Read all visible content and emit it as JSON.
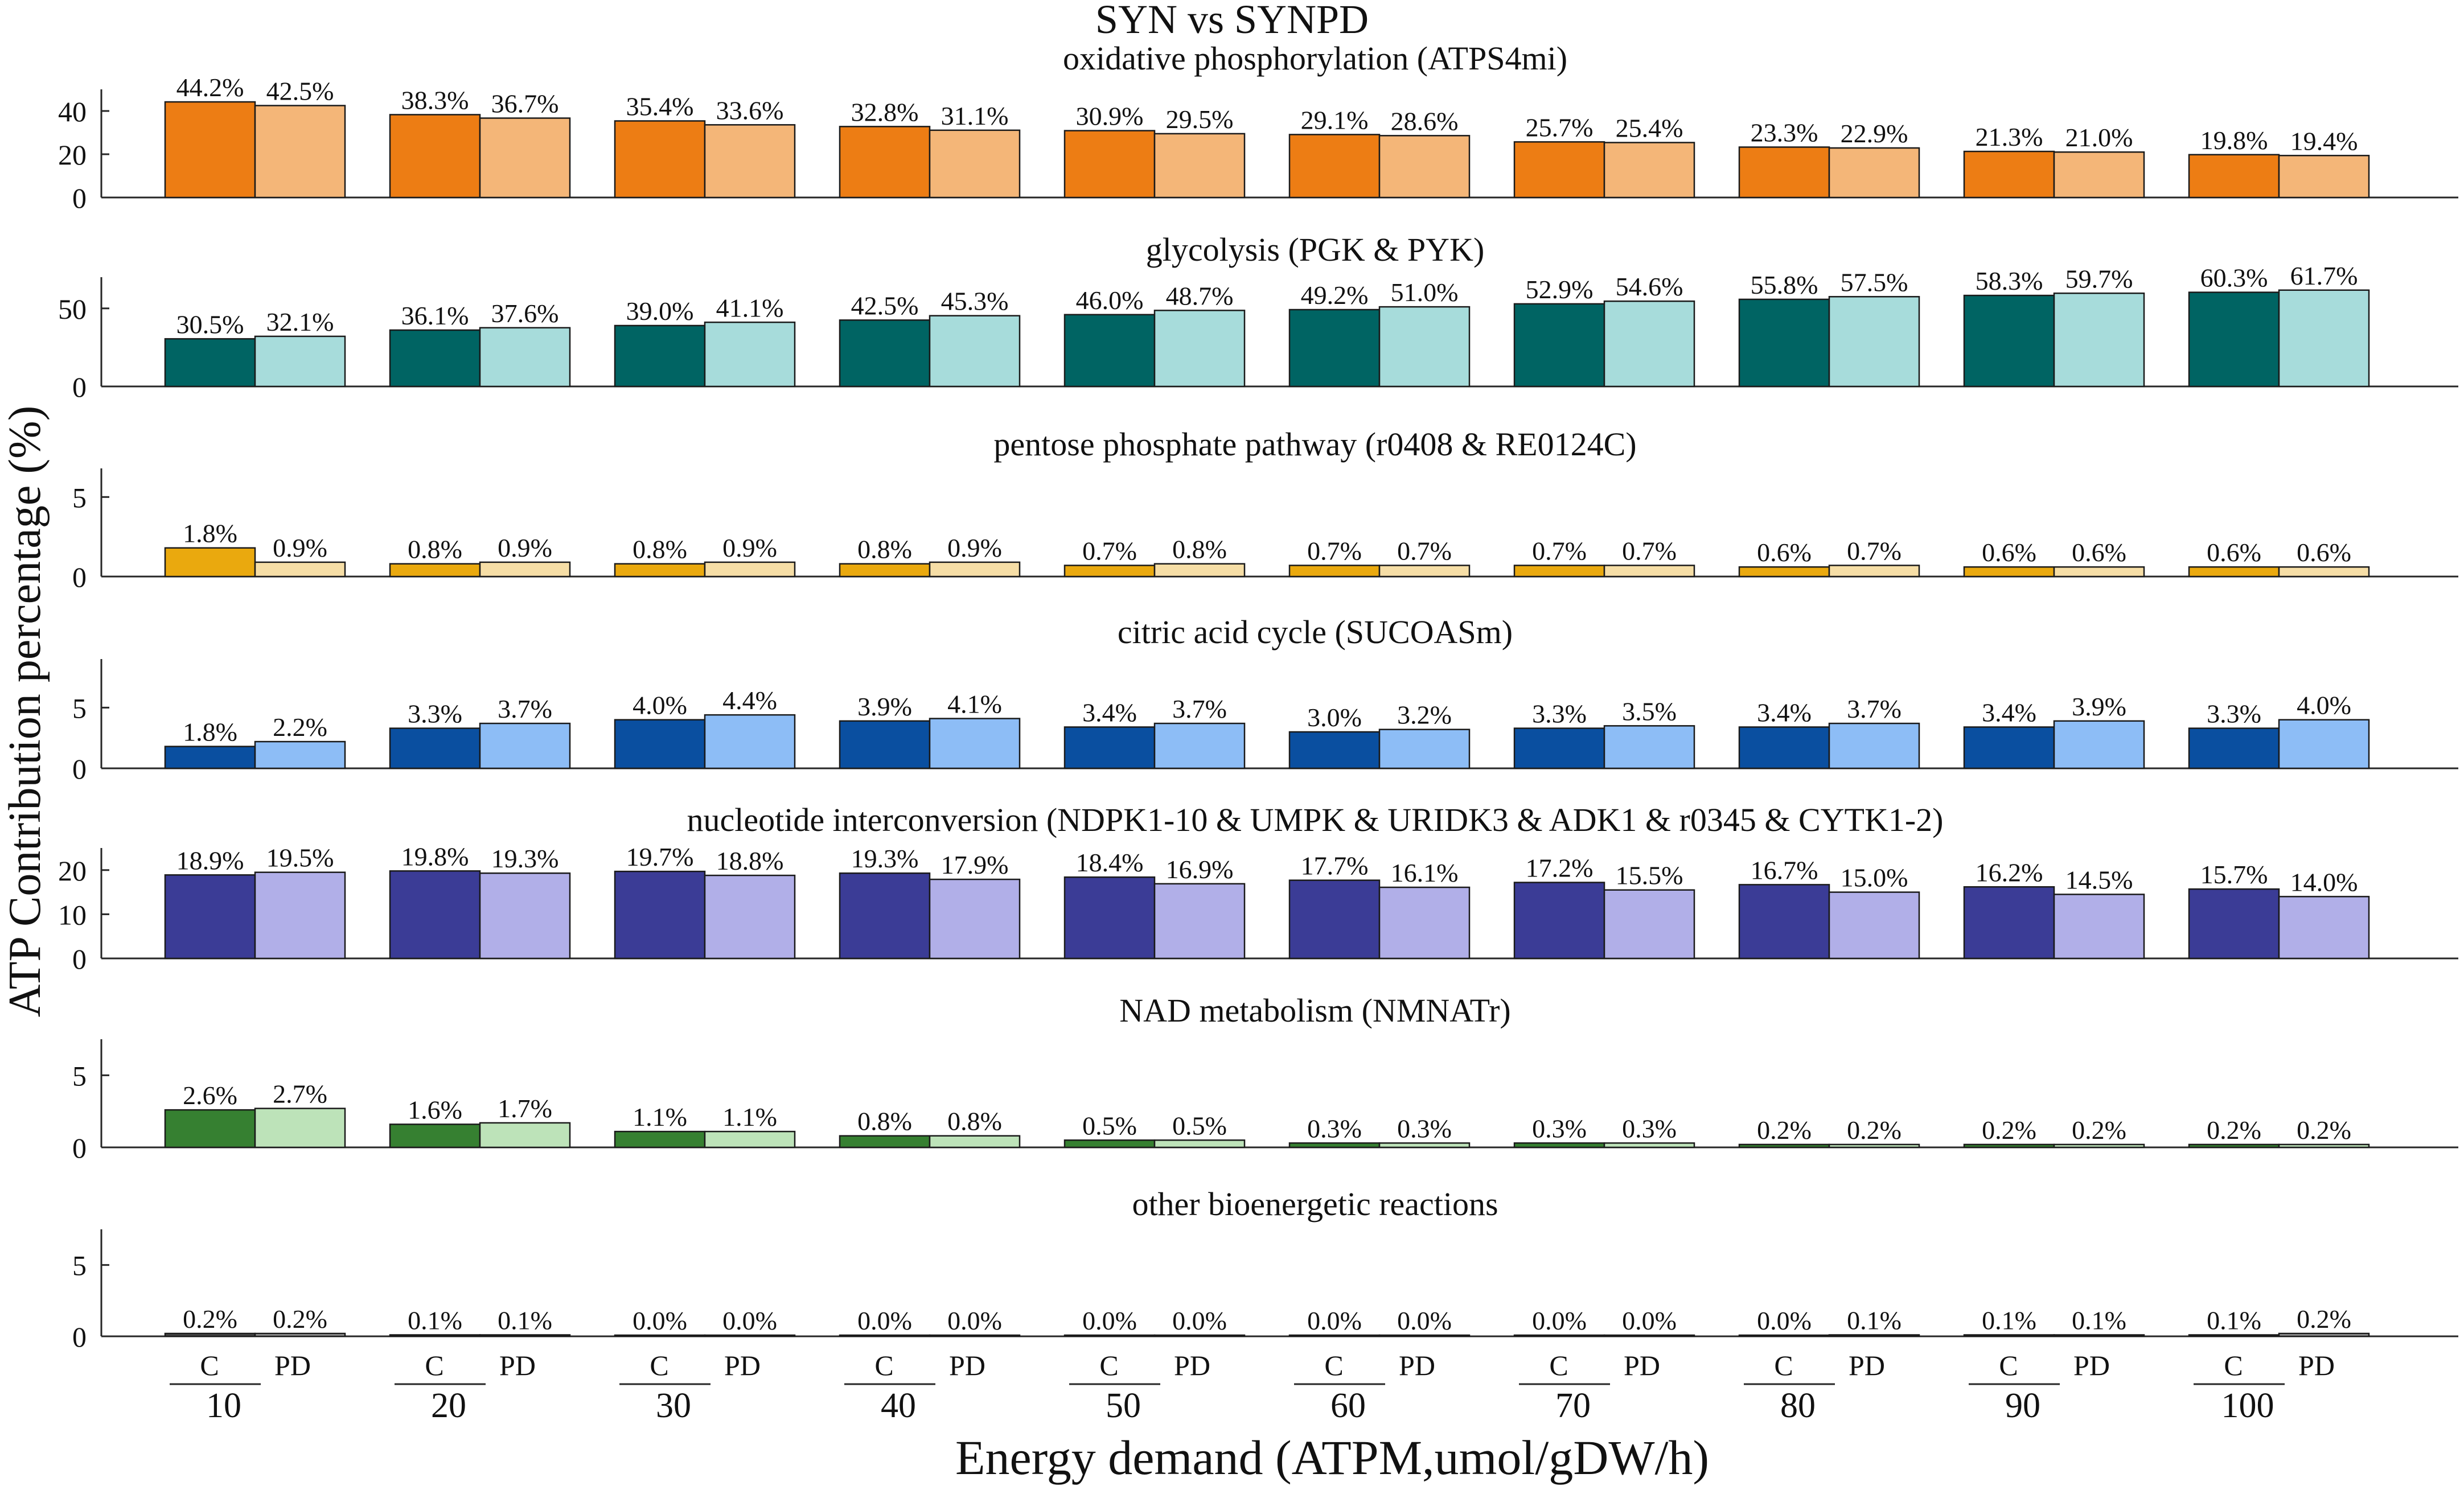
{
  "chart_data": {
    "type": "bar",
    "title": "SYN vs SYNPD",
    "ylabel": "ATP Contribution percentage (%)",
    "xlabel": "Energy demand (ATPM,umol/gDW/h)",
    "categories": [
      "10",
      "20",
      "30",
      "40",
      "50",
      "60",
      "70",
      "80",
      "90",
      "100"
    ],
    "group_labels": [
      "C",
      "PD"
    ],
    "panels": [
      {
        "title": "oxidative phosphorylation (ATPS4mi)",
        "ylim": [
          0,
          50
        ],
        "yticks": [
          0,
          20,
          40
        ],
        "colors": [
          "#ED7D14",
          "#F4B678"
        ],
        "series": [
          {
            "name": "C",
            "values": [
              44.2,
              38.3,
              35.4,
              32.8,
              30.9,
              29.1,
              25.7,
              23.3,
              21.3,
              19.8
            ],
            "labels": [
              "44.2%",
              "38.3%",
              "35.4%",
              "32.8%",
              "30.9%",
              "29.1%",
              "25.7%",
              "23.3%",
              "21.3%",
              "19.8%"
            ]
          },
          {
            "name": "PD",
            "values": [
              42.5,
              36.7,
              33.6,
              31.1,
              29.5,
              28.6,
              25.4,
              22.9,
              21.0,
              19.4
            ],
            "labels": [
              "42.5%",
              "36.7%",
              "33.6%",
              "31.1%",
              "29.5%",
              "28.6%",
              "25.4%",
              "22.9%",
              "21.0%",
              "19.4%"
            ]
          }
        ]
      },
      {
        "title": "glycolysis (PGK & PYK)",
        "ylim": [
          0,
          70
        ],
        "yticks": [
          0,
          50
        ],
        "colors": [
          "#006463",
          "#A7DCDB"
        ],
        "series": [
          {
            "name": "C",
            "values": [
              30.5,
              36.1,
              39.0,
              42.5,
              46.0,
              49.2,
              52.9,
              55.8,
              58.3,
              60.3
            ],
            "labels": [
              "30.5%",
              "36.1%",
              "39.0%",
              "42.5%",
              "46.0%",
              "49.2%",
              "52.9%",
              "55.8%",
              "58.3%",
              "60.3%"
            ]
          },
          {
            "name": "PD",
            "values": [
              32.1,
              37.6,
              41.1,
              45.3,
              48.7,
              51.0,
              54.6,
              57.5,
              59.7,
              61.7
            ],
            "labels": [
              "32.1%",
              "37.6%",
              "41.1%",
              "45.3%",
              "48.7%",
              "51.0%",
              "54.6%",
              "57.5%",
              "59.7%",
              "61.7%"
            ]
          }
        ]
      },
      {
        "title": "pentose phosphate pathway (r0408 & RE0124C)",
        "ylim": [
          0,
          6.8
        ],
        "yticks": [
          0,
          5
        ],
        "colors": [
          "#EAA90E",
          "#F6DEA6"
        ],
        "series": [
          {
            "name": "C",
            "values": [
              1.8,
              0.8,
              0.8,
              0.8,
              0.7,
              0.7,
              0.7,
              0.6,
              0.6,
              0.6
            ],
            "labels": [
              "1.8%",
              "0.8%",
              "0.8%",
              "0.8%",
              "0.7%",
              "0.7%",
              "0.7%",
              "0.6%",
              "0.6%",
              "0.6%"
            ]
          },
          {
            "name": "PD",
            "values": [
              0.9,
              0.9,
              0.9,
              0.9,
              0.8,
              0.7,
              0.7,
              0.7,
              0.6,
              0.6
            ],
            "labels": [
              "0.9%",
              "0.9%",
              "0.9%",
              "0.9%",
              "0.8%",
              "0.7%",
              "0.7%",
              "0.7%",
              "0.6%",
              "0.6%"
            ]
          }
        ]
      },
      {
        "title": "citric acid cycle (SUCOASm)",
        "ylim": [
          0,
          9
        ],
        "yticks": [
          0,
          5
        ],
        "colors": [
          "#0A4FA0",
          "#8DBDF6"
        ],
        "series": [
          {
            "name": "C",
            "values": [
              1.8,
              3.3,
              4.0,
              3.9,
              3.4,
              3.0,
              3.3,
              3.4,
              3.4,
              3.3
            ],
            "labels": [
              "1.8%",
              "3.3%",
              "4.0%",
              "3.9%",
              "3.4%",
              "3.0%",
              "3.3%",
              "3.4%",
              "3.4%",
              "3.3%"
            ]
          },
          {
            "name": "PD",
            "values": [
              2.2,
              3.7,
              4.4,
              4.1,
              3.7,
              3.2,
              3.5,
              3.7,
              3.9,
              4.0
            ],
            "labels": [
              "2.2%",
              "3.7%",
              "4.4%",
              "4.1%",
              "3.7%",
              "3.2%",
              "3.5%",
              "3.7%",
              "3.9%",
              "4.0%"
            ]
          }
        ]
      },
      {
        "title": "nucleotide interconversion (NDPK1-10 & UMPK & URIDK3 & ADK1 & r0345 & CYTK1-2)",
        "ylim": [
          0,
          25
        ],
        "yticks": [
          0,
          10,
          20
        ],
        "colors": [
          "#3B3C96",
          "#B1AFE8"
        ],
        "series": [
          {
            "name": "C",
            "values": [
              18.9,
              19.8,
              19.7,
              19.3,
              18.4,
              17.7,
              17.2,
              16.7,
              16.2,
              15.7
            ],
            "labels": [
              "18.9%",
              "19.8%",
              "19.7%",
              "19.3%",
              "18.4%",
              "17.7%",
              "17.2%",
              "16.7%",
              "16.2%",
              "15.7%"
            ]
          },
          {
            "name": "PD",
            "values": [
              19.5,
              19.3,
              18.8,
              17.9,
              16.9,
              16.1,
              15.5,
              15.0,
              14.5,
              14.0
            ],
            "labels": [
              "19.5%",
              "19.3%",
              "18.8%",
              "17.9%",
              "16.9%",
              "16.1%",
              "15.5%",
              "15.0%",
              "14.5%",
              "14.0%"
            ]
          }
        ]
      },
      {
        "title": "NAD metabolism (NMNATr)",
        "ylim": [
          0,
          7.5
        ],
        "yticks": [
          0,
          5
        ],
        "colors": [
          "#368031",
          "#BDE3B9"
        ],
        "series": [
          {
            "name": "C",
            "values": [
              2.6,
              1.6,
              1.1,
              0.8,
              0.5,
              0.3,
              0.3,
              0.2,
              0.2,
              0.2
            ],
            "labels": [
              "2.6%",
              "1.6%",
              "1.1%",
              "0.8%",
              "0.5%",
              "0.3%",
              "0.3%",
              "0.2%",
              "0.2%",
              "0.2%"
            ]
          },
          {
            "name": "PD",
            "values": [
              2.7,
              1.7,
              1.1,
              0.8,
              0.5,
              0.3,
              0.3,
              0.2,
              0.2,
              0.2
            ],
            "labels": [
              "2.7%",
              "1.7%",
              "1.1%",
              "0.8%",
              "0.5%",
              "0.3%",
              "0.3%",
              "0.2%",
              "0.2%",
              "0.2%"
            ]
          }
        ]
      },
      {
        "title": "other bioenergetic reactions",
        "ylim": [
          0,
          7.5
        ],
        "yticks": [
          0,
          5
        ],
        "colors": [
          "#4A4A4A",
          "#9A9A9A"
        ],
        "series": [
          {
            "name": "C",
            "values": [
              0.2,
              0.1,
              0.0,
              0.0,
              0.0,
              0.0,
              0.0,
              0.0,
              0.1,
              0.1
            ],
            "labels": [
              "0.2%",
              "0.1%",
              "0.0%",
              "0.0%",
              "0.0%",
              "0.0%",
              "0.0%",
              "0.0%",
              "0.1%",
              "0.1%"
            ]
          },
          {
            "name": "PD",
            "values": [
              0.2,
              0.1,
              0.0,
              0.0,
              0.0,
              0.0,
              0.0,
              0.1,
              0.1,
              0.2
            ],
            "labels": [
              "0.2%",
              "0.1%",
              "0.0%",
              "0.0%",
              "0.0%",
              "0.0%",
              "0.0%",
              "0.1%",
              "0.1%",
              "0.2%"
            ]
          }
        ]
      }
    ]
  }
}
